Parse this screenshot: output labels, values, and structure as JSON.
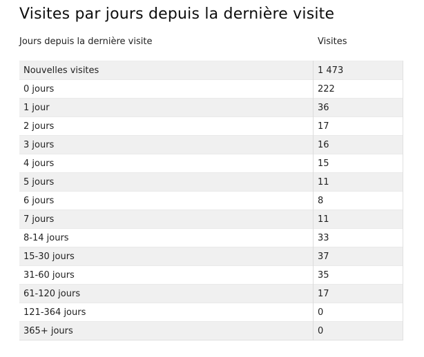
{
  "title": "Visites par jours depuis la dernière visite",
  "table": {
    "columns": [
      {
        "label": "Jours depuis la dernière visite"
      },
      {
        "label": "Visites"
      }
    ],
    "rows": [
      {
        "label": "Nouvelles visites",
        "value": "1 473"
      },
      {
        "label": "0 jours",
        "value": "222"
      },
      {
        "label": "1 jour",
        "value": "36"
      },
      {
        "label": "2 jours",
        "value": "17"
      },
      {
        "label": "3 jours",
        "value": "16"
      },
      {
        "label": "4 jours",
        "value": "15"
      },
      {
        "label": "5 jours",
        "value": "11"
      },
      {
        "label": "6 jours",
        "value": "8"
      },
      {
        "label": "7 jours",
        "value": "11"
      },
      {
        "label": "8-14 jours",
        "value": "33"
      },
      {
        "label": "15-30 jours",
        "value": "37"
      },
      {
        "label": "31-60 jours",
        "value": "35"
      },
      {
        "label": "61-120 jours",
        "value": "17"
      },
      {
        "label": "121-364 jours",
        "value": "0"
      },
      {
        "label": "365+ jours",
        "value": "0"
      }
    ]
  },
  "chart_data": {
    "type": "table",
    "title": "Visites par jours depuis la dernière visite",
    "columns": [
      "Jours depuis la dernière visite",
      "Visites"
    ],
    "categories": [
      "Nouvelles visites",
      "0 jours",
      "1 jour",
      "2 jours",
      "3 jours",
      "4 jours",
      "5 jours",
      "6 jours",
      "7 jours",
      "8-14 jours",
      "15-30 jours",
      "31-60 jours",
      "61-120 jours",
      "121-364 jours",
      "365+ jours"
    ],
    "values": [
      1473,
      222,
      36,
      17,
      16,
      15,
      11,
      8,
      11,
      33,
      37,
      35,
      17,
      0,
      0
    ]
  },
  "colors": {
    "alt_row_bg": "#f0f0f0",
    "column_divider": "#dcdcdc",
    "row_divider": "#e9e9e9",
    "text": "#212121",
    "title_text": "#0d0d0d"
  }
}
